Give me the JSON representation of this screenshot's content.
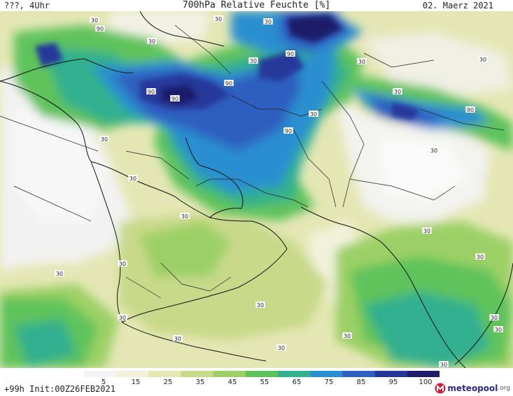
{
  "header": {
    "left": "???, 4Uhr",
    "title": "700hPa Relative Feuchte [%]",
    "date": "02. Maerz 2021"
  },
  "map": {
    "contour_labels": [
      "90",
      "90",
      "90",
      "90",
      "90",
      "90",
      "90",
      "30",
      "30",
      "30",
      "30",
      "30",
      "30",
      "30",
      "30",
      "30",
      "30",
      "30",
      "30",
      "30",
      "30",
      "30",
      "30",
      "30",
      "30",
      "30",
      "30",
      "30",
      "30",
      "30",
      "30",
      "30"
    ]
  },
  "colorbar": {
    "ticks": [
      "5",
      "15",
      "25",
      "35",
      "45",
      "55",
      "65",
      "75",
      "85",
      "95",
      "100"
    ],
    "colors": [
      "#f4f4f4",
      "#f2f2dc",
      "#e4e7b4",
      "#c9d98a",
      "#9cd066",
      "#5ec35b",
      "#33b08f",
      "#2a8fd0",
      "#2f5fc0",
      "#26379a",
      "#1e1c6b"
    ]
  },
  "footer": {
    "left": "+99h Init:00Z26FEB2021",
    "brand": "meteopool",
    "brand_tld": ".org"
  }
}
